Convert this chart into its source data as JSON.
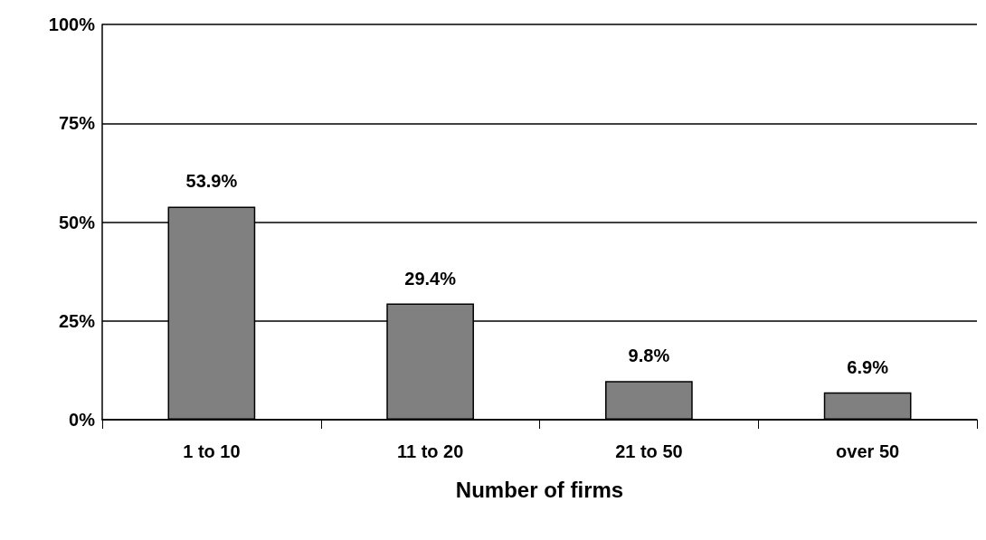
{
  "chart_data": {
    "type": "bar",
    "xlabel": "Number of firms",
    "categories": [
      "1 to 10",
      "11 to 20",
      "21 to 50",
      "over 50"
    ],
    "values": [
      53.9,
      29.4,
      9.8,
      6.9
    ],
    "value_labels": [
      "53.9%",
      "29.4%",
      "9.8%",
      "6.9%"
    ],
    "color": "#808080",
    "ylim": [
      0,
      100
    ],
    "yticks": [
      {
        "value": 0,
        "label": "0%"
      },
      {
        "value": 25,
        "label": "25%"
      },
      {
        "value": 50,
        "label": "50%"
      },
      {
        "value": 75,
        "label": "75%"
      },
      {
        "value": 100,
        "label": "100%"
      }
    ],
    "grid": "y"
  }
}
